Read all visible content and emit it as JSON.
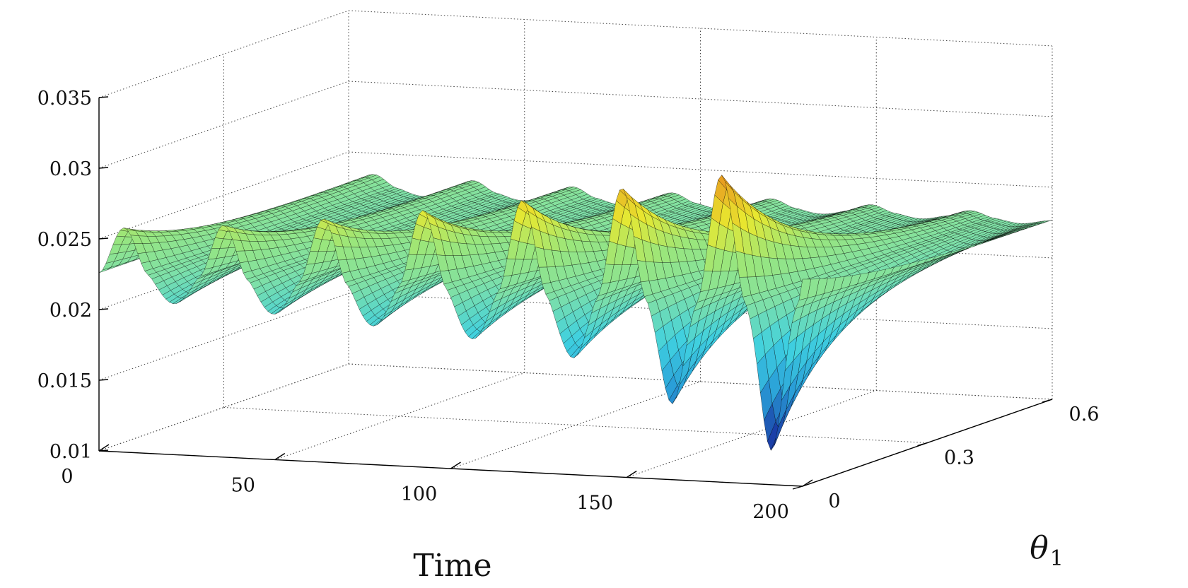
{
  "chart_data": {
    "type": "surface3d",
    "title": "",
    "xlabel": "Time",
    "ylabel": "θ",
    "ylabel_subscript": "1",
    "zlabel": "",
    "xlim": [
      0,
      200
    ],
    "ylim": [
      0,
      0.6
    ],
    "zlim": [
      0.01,
      0.035
    ],
    "x_ticks": [
      0,
      50,
      100,
      150,
      200
    ],
    "x_tick_labels": [
      "0",
      "50",
      "100",
      "150",
      "200"
    ],
    "y_ticks": [
      0,
      0.3,
      0.6
    ],
    "y_tick_labels": [
      "0",
      "0.3",
      "0.6"
    ],
    "z_ticks": [
      0.01,
      0.015,
      0.02,
      0.025,
      0.03,
      0.035
    ],
    "z_tick_labels": [
      "0.01",
      "0.015",
      "0.02",
      "0.025",
      "0.03",
      "0.035"
    ],
    "grid": true,
    "colormap": [
      "#1a3fa8",
      "#2aa0d8",
      "#3fd0e0",
      "#7ee0a8",
      "#9be67a",
      "#e8e830",
      "#e8a020",
      "#c82010"
    ],
    "mesh_color": "#000000",
    "wave": {
      "baseline": 0.0226,
      "period": 28.3,
      "crest_amplitude_at_theta0": 0.0032,
      "crest_amplitude_at_theta0.6_t0": 0.0016,
      "peak_max": 0.034,
      "trough_min": 0.0137,
      "decay_toward_theta_zero_end": 0.0
    }
  }
}
